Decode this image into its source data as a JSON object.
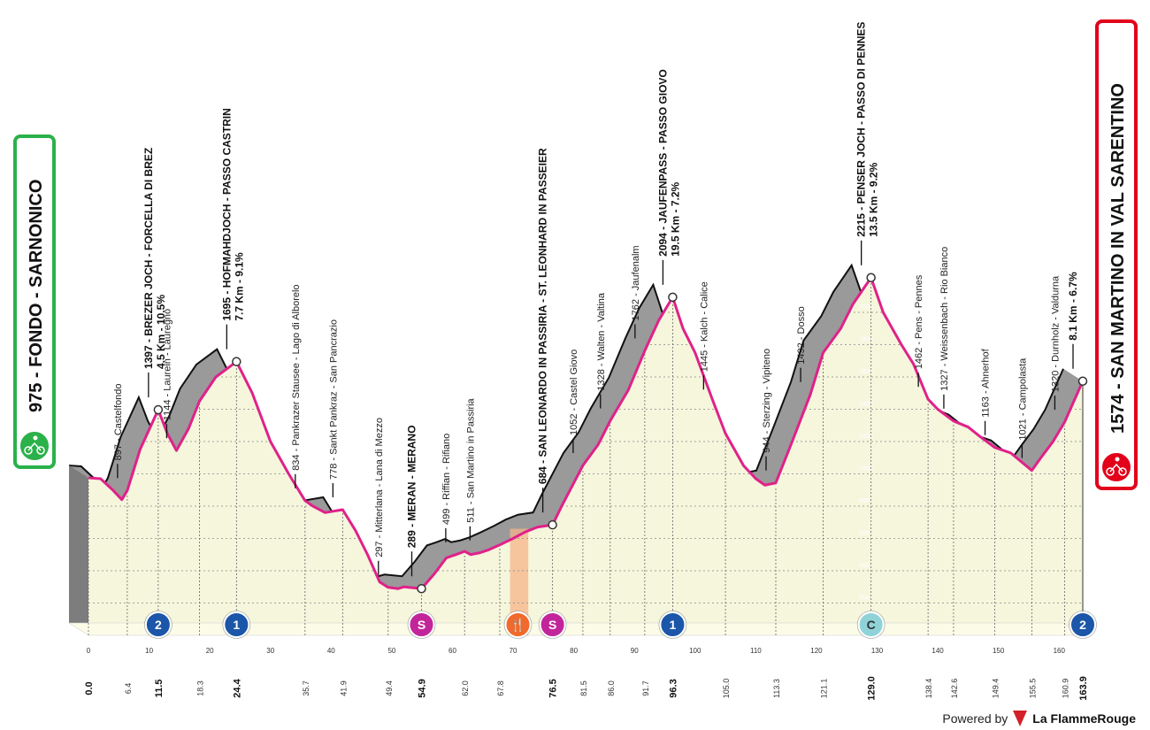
{
  "chart_data": {
    "type": "area",
    "start": {
      "altitude": "975",
      "name": "FONDO - SARNONICO",
      "color": "#2bb14a"
    },
    "finish": {
      "altitude": "1574",
      "name": "SAN MARTINO IN VAL SARENTINO",
      "color": "#e2001a"
    },
    "xlim": [
      0,
      163.9
    ],
    "ylim": [
      0,
      2400
    ],
    "x_ticks": [
      "0",
      "10",
      "20",
      "30",
      "40",
      "50",
      "60",
      "70",
      "80",
      "90",
      "100",
      "110",
      "120",
      "130",
      "140",
      "150",
      "160"
    ],
    "y_ticks": [
      "200",
      "400",
      "600",
      "800",
      "1000",
      "1200",
      "1400",
      "1600",
      "1800",
      "2000",
      "2200"
    ],
    "profile": [
      [
        0,
        975
      ],
      [
        2,
        970
      ],
      [
        4,
        900
      ],
      [
        5.5,
        840
      ],
      [
        6.4,
        897
      ],
      [
        8.5,
        1150
      ],
      [
        11.5,
        1397
      ],
      [
        13,
        1250
      ],
      [
        14.5,
        1144
      ],
      [
        16.5,
        1280
      ],
      [
        18.3,
        1450
      ],
      [
        21,
        1600
      ],
      [
        24.4,
        1695
      ],
      [
        27,
        1500
      ],
      [
        30,
        1200
      ],
      [
        33,
        1000
      ],
      [
        35.7,
        834
      ],
      [
        37,
        800
      ],
      [
        39,
        760
      ],
      [
        41.9,
        778
      ],
      [
        44,
        650
      ],
      [
        46,
        500
      ],
      [
        48,
        330
      ],
      [
        49.4,
        297
      ],
      [
        51,
        289
      ],
      [
        52,
        300
      ],
      [
        54.9,
        289
      ],
      [
        57,
        380
      ],
      [
        59,
        480
      ],
      [
        60.5,
        499
      ],
      [
        62.0,
        520
      ],
      [
        63,
        500
      ],
      [
        64.5,
        511
      ],
      [
        66,
        530
      ],
      [
        67.8,
        560
      ],
      [
        70,
        600
      ],
      [
        72,
        640
      ],
      [
        74,
        670
      ],
      [
        76.5,
        684
      ],
      [
        78,
        800
      ],
      [
        81.5,
        1052
      ],
      [
        84,
        1180
      ],
      [
        86,
        1328
      ],
      [
        89,
        1520
      ],
      [
        91.7,
        1762
      ],
      [
        94,
        1950
      ],
      [
        96.3,
        2094
      ],
      [
        98,
        1900
      ],
      [
        100,
        1750
      ],
      [
        103,
        1445
      ],
      [
        105,
        1250
      ],
      [
        108,
        1050
      ],
      [
        110,
        970
      ],
      [
        111.5,
        930
      ],
      [
        113.3,
        944
      ],
      [
        116,
        1200
      ],
      [
        119,
        1492
      ],
      [
        121.1,
        1750
      ],
      [
        124,
        1900
      ],
      [
        126,
        2050
      ],
      [
        129,
        2215
      ],
      [
        131,
        2000
      ],
      [
        134,
        1800
      ],
      [
        136,
        1680
      ],
      [
        138.4,
        1462
      ],
      [
        140,
        1400
      ],
      [
        142.6,
        1327
      ],
      [
        145,
        1290
      ],
      [
        147,
        1230
      ],
      [
        149.4,
        1163
      ],
      [
        152,
        1130
      ],
      [
        155.5,
        1021
      ],
      [
        157,
        1100
      ],
      [
        159,
        1200
      ],
      [
        160.9,
        1320
      ],
      [
        163.9,
        1574
      ]
    ],
    "km_markers": [
      {
        "km": 0,
        "label": "0.0",
        "major": true
      },
      {
        "km": 6.4,
        "label": "6.4"
      },
      {
        "km": 11.5,
        "label": "11.5",
        "major": true
      },
      {
        "km": 18.3,
        "label": "18.3"
      },
      {
        "km": 24.4,
        "label": "24.4",
        "major": true
      },
      {
        "km": 35.7,
        "label": "35.7"
      },
      {
        "km": 41.9,
        "label": "41.9"
      },
      {
        "km": 49.4,
        "label": "49.4"
      },
      {
        "km": 54.9,
        "label": "54.9",
        "major": true
      },
      {
        "km": 62.0,
        "label": "62.0"
      },
      {
        "km": 67.8,
        "label": "67.8"
      },
      {
        "km": 76.5,
        "label": "76.5",
        "major": true
      },
      {
        "km": 81.5,
        "label": "81.5"
      },
      {
        "km": 86.0,
        "label": "86.0"
      },
      {
        "km": 91.7,
        "label": "91.7"
      },
      {
        "km": 96.3,
        "label": "96.3",
        "major": true
      },
      {
        "km": 105.0,
        "label": "105.0"
      },
      {
        "km": 113.3,
        "label": "113.3"
      },
      {
        "km": 121.1,
        "label": "121.1"
      },
      {
        "km": 129.0,
        "label": "129.0",
        "major": true
      },
      {
        "km": 138.4,
        "label": "138.4"
      },
      {
        "km": 142.6,
        "label": "142.6"
      },
      {
        "km": 149.4,
        "label": "149.4"
      },
      {
        "km": 155.5,
        "label": "155.5"
      },
      {
        "km": 160.9,
        "label": "160.9"
      },
      {
        "km": 163.9,
        "label": "163.9",
        "major": true
      }
    ],
    "waypoints": [
      {
        "km": 6.4,
        "alt": 897,
        "lines": [
          "897 - Castelfondo"
        ]
      },
      {
        "km": 11.5,
        "alt": 1397,
        "bold": true,
        "lines": [
          "1397 - BREZER JOCH - FORCELLA DI BREZ",
          "4.5 Km - 10.5%"
        ]
      },
      {
        "km": 14.5,
        "alt": 1144,
        "lines": [
          "1144 - Laurein - Lauregno"
        ]
      },
      {
        "km": 24.4,
        "alt": 1695,
        "bold": true,
        "lines": [
          "1695 - HOFMAHDJOCH - PASSO CASTRIN",
          "7.7 Km - 9.1%"
        ]
      },
      {
        "km": 35.7,
        "alt": 834,
        "lines": [
          "834 - Pankrazer Stausee - Lago di Alborelo"
        ]
      },
      {
        "km": 41.9,
        "alt": 778,
        "lines": [
          "778 - Sankt Pankraz - San Pancrazio"
        ]
      },
      {
        "km": 49.4,
        "alt": 297,
        "lines": [
          "297 - Mitterlana - Lana di Mezzo"
        ]
      },
      {
        "km": 54.9,
        "alt": 289,
        "bold": true,
        "lines": [
          "289 - MERAN - MERANO"
        ]
      },
      {
        "km": 60.5,
        "alt": 499,
        "lines": [
          "499 - Riffian - Rifiano"
        ]
      },
      {
        "km": 64.5,
        "alt": 511,
        "lines": [
          "511 - San Martino in Passiria"
        ]
      },
      {
        "km": 76.5,
        "alt": 684,
        "bold": true,
        "lines": [
          "684 - SAN LEONARDO IN PASSIRIA - ST. LEONHARD IN PASSEIER"
        ]
      },
      {
        "km": 81.5,
        "alt": 1052,
        "lines": [
          "1052 - Castel Giovo"
        ]
      },
      {
        "km": 86.0,
        "alt": 1328,
        "lines": [
          "1328 - Walten - Valtina"
        ]
      },
      {
        "km": 91.7,
        "alt": 1762,
        "lines": [
          "1762 - Jaufenalm"
        ]
      },
      {
        "km": 96.3,
        "alt": 2094,
        "bold": true,
        "lines": [
          "2094 - JAUFENPASS - PASSO GIOVO",
          "19.5 Km - 7.2%"
        ]
      },
      {
        "km": 103,
        "alt": 1445,
        "lines": [
          "1445 - Kalch - Calice"
        ]
      },
      {
        "km": 113.3,
        "alt": 944,
        "lines": [
          "944 - Sterzing - Vipiteno"
        ]
      },
      {
        "km": 119,
        "alt": 1492,
        "lines": [
          "1492 - Dosso"
        ]
      },
      {
        "km": 129.0,
        "alt": 2215,
        "bold": true,
        "lines": [
          "2215 - PENSER JOCH - PASSO DI PENNES",
          "13.5 Km - 9.2%"
        ]
      },
      {
        "km": 138.4,
        "alt": 1462,
        "lines": [
          "1462 - Pens - Pennes"
        ]
      },
      {
        "km": 142.6,
        "alt": 1327,
        "lines": [
          "1327 - Weissenbach - Rio Bianco"
        ]
      },
      {
        "km": 149.4,
        "alt": 1163,
        "lines": [
          "1163 - Ahnerhof"
        ]
      },
      {
        "km": 155.5,
        "alt": 1021,
        "lines": [
          "1021 - Campolasta"
        ]
      },
      {
        "km": 160.9,
        "alt": 1320,
        "lines": [
          "1320 - Durnholz - Valdurna"
        ]
      },
      {
        "km": 163.9,
        "alt": 1574,
        "bold": true,
        "lines": [
          "8.1 Km - 6.7%"
        ]
      }
    ],
    "badges": [
      {
        "km": 11.5,
        "text": "2",
        "type": "kom",
        "color": "#1b56a8"
      },
      {
        "km": 24.4,
        "text": "1",
        "type": "kom",
        "color": "#1b56a8"
      },
      {
        "km": 54.9,
        "text": "S",
        "type": "sprint",
        "color": "#c2259a"
      },
      {
        "km": 70.8,
        "text": "🍴",
        "type": "feed",
        "color": "#f06a2b"
      },
      {
        "km": 76.5,
        "text": "S",
        "type": "sprint",
        "color": "#c2259a"
      },
      {
        "km": 96.3,
        "text": "1",
        "type": "kom",
        "color": "#1b56a8"
      },
      {
        "km": 129.0,
        "text": "C",
        "type": "cima",
        "color": "#8fd3d8"
      },
      {
        "km": 163.9,
        "text": "2",
        "type": "kom",
        "color": "#1b56a8"
      }
    ],
    "feed_zone": [
      69.5,
      72.5
    ]
  },
  "footer": {
    "powered": "Powered by",
    "brand": "La FlammeRouge"
  }
}
